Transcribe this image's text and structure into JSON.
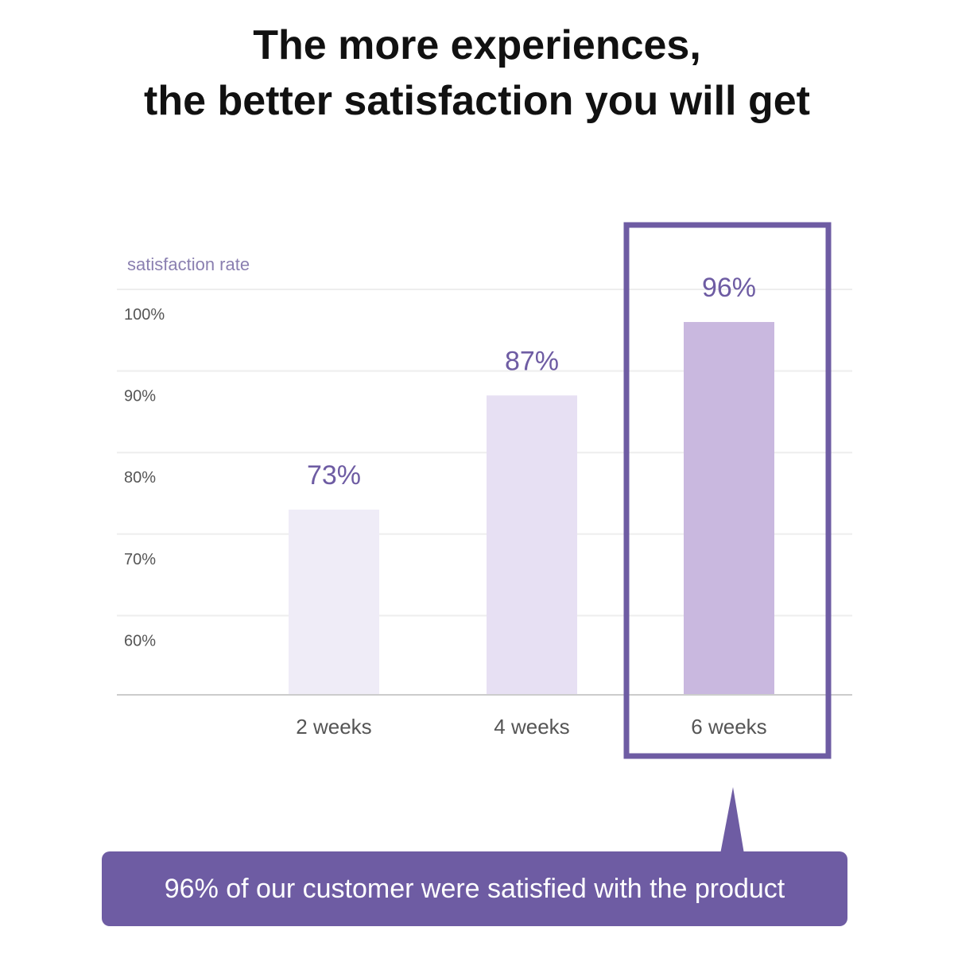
{
  "header": {
    "line1": "The more experiences,",
    "line2": "the better satisfaction you will get"
  },
  "chart_data": {
    "type": "bar",
    "ylabel": "satisfaction rate",
    "categories": [
      "2 weeks",
      "4 weeks",
      "6 weeks"
    ],
    "values": [
      73,
      87,
      96
    ],
    "value_labels": [
      "73%",
      "87%",
      "96%"
    ],
    "yticks": [
      100,
      90,
      80,
      70,
      60
    ],
    "ytick_labels": [
      "100%",
      "90%",
      "80%",
      "70%",
      "60%"
    ],
    "ylim": [
      60,
      100
    ],
    "grid": true,
    "highlight_category": "6 weeks",
    "colors": {
      "bars": [
        "#efecf7",
        "#e7e0f3",
        "#c9b8df"
      ],
      "value_labels": "#6e5ca3",
      "highlight_border": "#6e5ca3",
      "axis_text": "#555555",
      "ylabel_text": "#8a7fb0",
      "grid": "#eeeeee"
    }
  },
  "callout": {
    "text": "96% of our customer were satisfied with the product",
    "color": "#6e5ca3"
  }
}
